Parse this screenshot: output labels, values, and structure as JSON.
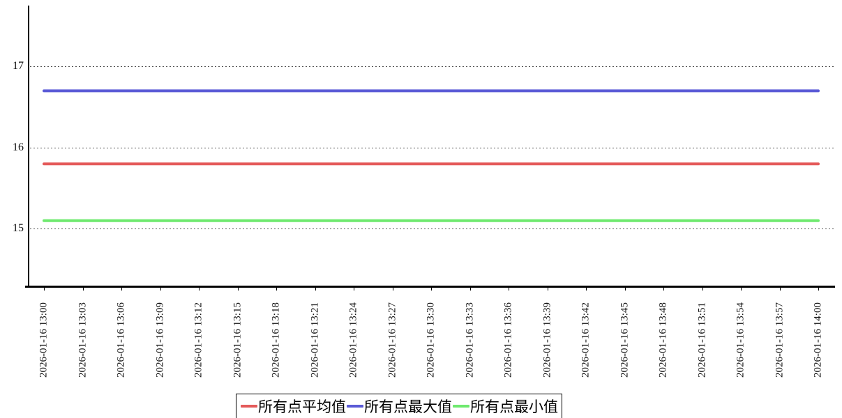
{
  "chart_data": {
    "type": "line",
    "title": "",
    "xlabel": "",
    "ylabel": "",
    "x_labels": [
      "2026-01-16 13:00",
      "2026-01-16 13:03",
      "2026-01-16 13:06",
      "2026-01-16 13:09",
      "2026-01-16 13:12",
      "2026-01-16 13:15",
      "2026-01-16 13:18",
      "2026-01-16 13:21",
      "2026-01-16 13:24",
      "2026-01-16 13:27",
      "2026-01-16 13:30",
      "2026-01-16 13:33",
      "2026-01-16 13:36",
      "2026-01-16 13:39",
      "2026-01-16 13:42",
      "2026-01-16 13:45",
      "2026-01-16 13:48",
      "2026-01-16 13:51",
      "2026-01-16 13:54",
      "2026-01-16 13:57",
      "2026-01-16 14:00"
    ],
    "series": [
      {
        "name": "所有点平均值",
        "color": "#e45a5a",
        "values": [
          15.8,
          15.8,
          15.8,
          15.8,
          15.8,
          15.8,
          15.8,
          15.8,
          15.8,
          15.8,
          15.8,
          15.8,
          15.8,
          15.8,
          15.8,
          15.8,
          15.8,
          15.8,
          15.8,
          15.8,
          15.8
        ]
      },
      {
        "name": "所有点最大值",
        "color": "#5a5ad6",
        "values": [
          16.7,
          16.7,
          16.7,
          16.7,
          16.7,
          16.7,
          16.7,
          16.7,
          16.7,
          16.7,
          16.7,
          16.7,
          16.7,
          16.7,
          16.7,
          16.7,
          16.7,
          16.7,
          16.7,
          16.7,
          16.7
        ]
      },
      {
        "name": "所有点最小值",
        "color": "#6ee96e",
        "values": [
          15.1,
          15.1,
          15.1,
          15.1,
          15.1,
          15.1,
          15.1,
          15.1,
          15.1,
          15.1,
          15.1,
          15.1,
          15.1,
          15.1,
          15.1,
          15.1,
          15.1,
          15.1,
          15.1,
          15.1,
          15.1
        ]
      }
    ],
    "yticks": [
      15,
      16,
      17
    ],
    "ylim": [
      14.3,
      17.75
    ],
    "grid": "horizontal-dotted",
    "legend_position": "bottom-center",
    "axis_color": "#000000",
    "grid_color": "#555555"
  }
}
